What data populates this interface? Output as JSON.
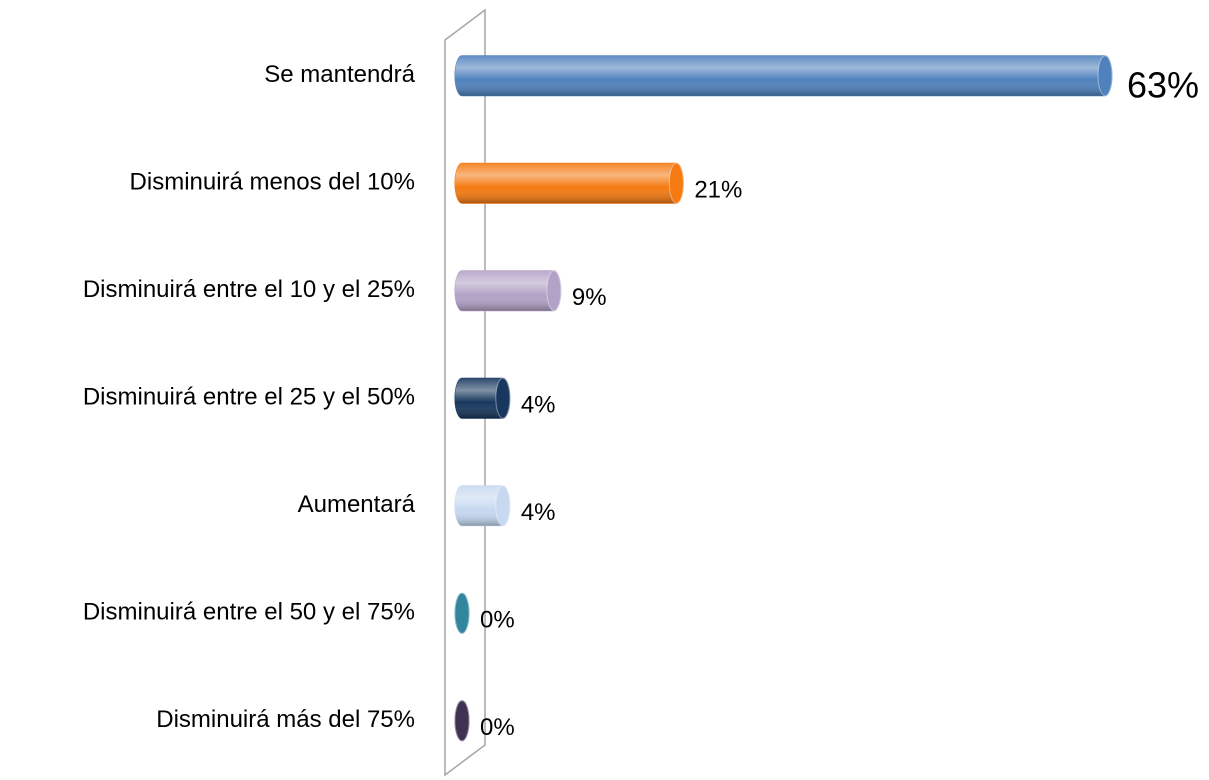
{
  "chart_data": {
    "type": "bar",
    "orientation": "horizontal",
    "categories": [
      "Se mantendrá",
      "Disminuirá menos del 10%",
      "Disminuirá entre el 10 y el 25%",
      "Disminuirá entre el 25 y el 50%",
      "Aumentará",
      "Disminuirá entre el 50 y el 75%",
      "Disminuirá más del 75%"
    ],
    "values": [
      63,
      21,
      9,
      4,
      4,
      0,
      0
    ],
    "value_labels": [
      "63%",
      "21%",
      "9%",
      "4%",
      "4%",
      "0%",
      "0%"
    ],
    "colors": [
      "#4f81bd",
      "#f57a12",
      "#b3a2c7",
      "#17375e",
      "#c6d9f1",
      "#31859c",
      "#403152"
    ]
  }
}
